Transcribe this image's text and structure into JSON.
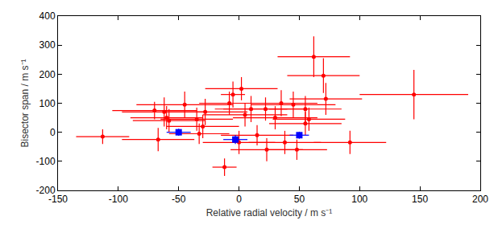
{
  "chart_data": {
    "type": "scatter",
    "x_label": "Relative radial velocity / m s⁻¹",
    "y_label": "Bisector span / m s⁻¹",
    "xlim": [
      -150,
      200
    ],
    "xticks": [
      -150,
      -100,
      -50,
      0,
      50,
      100,
      150,
      200
    ],
    "ylim": [
      -200,
      400
    ],
    "yticks": [
      -200,
      -100,
      0,
      100,
      200,
      300,
      400
    ],
    "grid": false,
    "series": [
      {
        "color": "#ff0000",
        "marker": "circle",
        "x": [
          -113,
          -70,
          -67,
          -62,
          -60,
          -58,
          -45,
          -35,
          -33,
          -30,
          -28,
          -12,
          -8,
          -5,
          0,
          2,
          5,
          10,
          15,
          22,
          23,
          30,
          35,
          38,
          45,
          48,
          55,
          55,
          58,
          62,
          70,
          72,
          92,
          145
        ],
        "y": [
          -15,
          75,
          -25,
          70,
          50,
          40,
          95,
          45,
          -5,
          20,
          70,
          -120,
          100,
          130,
          -35,
          150,
          60,
          80,
          -10,
          80,
          -60,
          50,
          100,
          -35,
          95,
          -60,
          80,
          30,
          45,
          260,
          195,
          115,
          -35,
          130
        ],
        "x_error": [
          22,
          35,
          30,
          35,
          30,
          30,
          40,
          30,
          25,
          30,
          35,
          10,
          25,
          10,
          30,
          30,
          35,
          30,
          30,
          35,
          30,
          35,
          30,
          30,
          35,
          25,
          30,
          30,
          30,
          30,
          30,
          30,
          30,
          45
        ],
        "y_error": [
          25,
          30,
          40,
          50,
          40,
          40,
          45,
          40,
          35,
          40,
          45,
          30,
          40,
          45,
          40,
          40,
          40,
          45,
          35,
          40,
          40,
          40,
          45,
          40,
          45,
          35,
          45,
          40,
          40,
          70,
          60,
          55,
          40,
          85
        ]
      },
      {
        "color": "#0000ff",
        "marker": "square",
        "x": [
          -50,
          -3,
          50
        ],
        "y": [
          0,
          -25,
          -10
        ],
        "x_error": [
          10,
          10,
          8
        ],
        "y_error": [
          12,
          15,
          12
        ]
      }
    ]
  }
}
